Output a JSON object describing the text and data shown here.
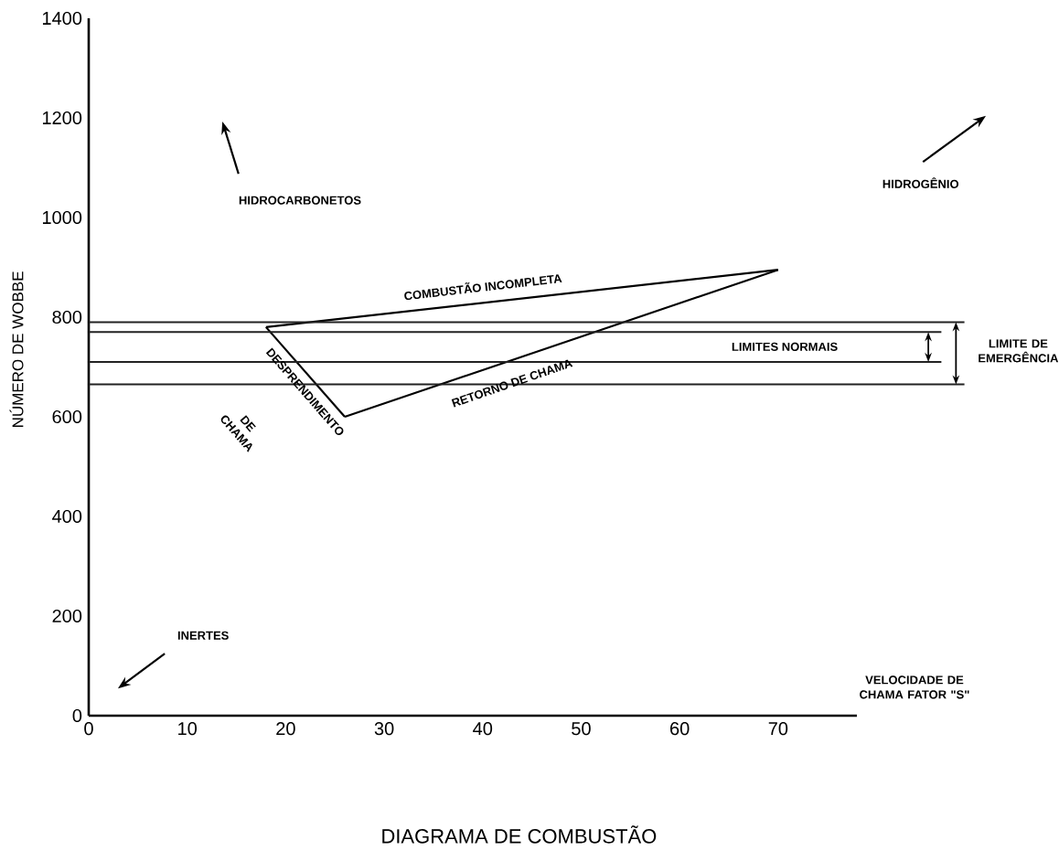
{
  "chart_data": {
    "type": "line",
    "title": "DIAGRAMA DE COMBUSTÃO",
    "xlabel": "VELOCIDADE DE CHAMA FATOR \"S\"",
    "ylabel": "NÚMERO DE WOBBE",
    "series": [
      {
        "color": "#000000",
        "x": [
          18,
          70
        ],
        "values": [
          780,
          895
        ]
      },
      {
        "color": "#000000",
        "x": [
          18,
          26
        ],
        "values": [
          780,
          600
        ]
      },
      {
        "color": "#000000",
        "x": [
          26,
          70
        ],
        "values": [
          600,
          895
        ]
      }
    ],
    "marker": "none",
    "line_style": "solid",
    "xlim": [
      0,
      78
    ],
    "xticks": [
      0,
      10,
      20,
      30,
      40,
      50,
      60,
      70
    ],
    "ylim": [
      0,
      1400
    ],
    "yticks": [
      0,
      200,
      400,
      600,
      800,
      1000,
      1200,
      1400
    ],
    "ref_lines": [
      {
        "axis": "y",
        "value": 790,
        "color": "#222222"
      },
      {
        "axis": "y",
        "value": 770,
        "color": "#222222"
      },
      {
        "axis": "y",
        "value": 710,
        "color": "#222222"
      },
      {
        "axis": "y",
        "value": 665,
        "color": "#222222"
      }
    ],
    "annotations": [
      "HIDROCARBONETOS",
      "HIDROGÊNIO",
      "INERTES",
      "COMBUSTÃO INCOMPLETA",
      "RETORNO DE CHAMA",
      "DESPRENDIMENTO",
      "DE CHAMA",
      "LIMITES NORMAIS",
      "LIMITE DE EMERGÊNCIA"
    ]
  }
}
